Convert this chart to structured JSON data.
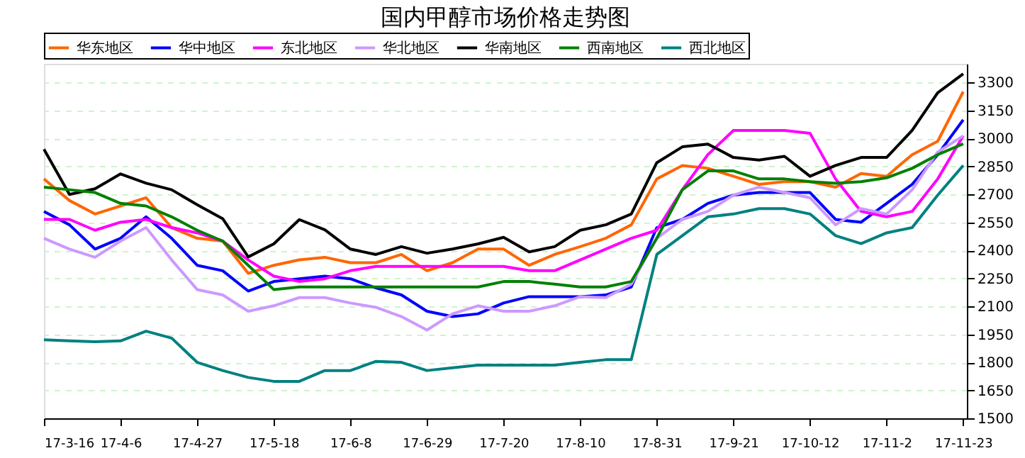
{
  "chart_data": {
    "type": "line",
    "title": "国内甲醇市场价格走势图",
    "x": [
      "--03-16",
      "--03-23",
      "--03-30",
      "--04-06",
      "--04-13",
      "--04-20",
      "--04-27",
      "--05-04",
      "--05-11",
      "--05-18",
      "--05-25",
      "--06-01",
      "--06-08",
      "--06-15",
      "--06-22",
      "--06-29",
      "--07-06",
      "--07-13",
      "--07-20",
      "--07-27",
      "--08-03",
      "--08-10",
      "--08-17",
      "--08-24",
      "--08-31",
      "--09-07",
      "--09-14",
      "--09-21",
      "--09-28",
      "--10-05",
      "--10-12",
      "--10-19",
      "--10-26",
      "--11-02",
      "--11-09",
      "--11-16",
      "--11-23"
    ],
    "series": [
      {
        "name": "华东地区",
        "color": "#ff6600",
        "values": [
          2783,
          2667,
          2595,
          2638,
          2682,
          2522,
          2465,
          2450,
          2277,
          2320,
          2349,
          2363,
          2334,
          2334,
          2378,
          2291,
          2334,
          2407,
          2407,
          2320,
          2378,
          2420,
          2465,
          2537,
          2783,
          2855,
          2840,
          2797,
          2754,
          2768,
          2768,
          2739,
          2812,
          2797,
          2913,
          2985,
          3251
        ]
      },
      {
        "name": "华中地区",
        "color": "#0000ff",
        "values": [
          2609,
          2537,
          2407,
          2465,
          2580,
          2465,
          2320,
          2291,
          2182,
          2233,
          2248,
          2262,
          2248,
          2199,
          2161,
          2074,
          2045,
          2060,
          2118,
          2152,
          2152,
          2152,
          2161,
          2204,
          2522,
          2566,
          2652,
          2696,
          2710,
          2710,
          2710,
          2566,
          2551,
          2652,
          2754,
          2913,
          3100
        ]
      },
      {
        "name": "东北地区",
        "color": "#ff00ff",
        "values": [
          2566,
          2566,
          2508,
          2551,
          2566,
          2522,
          2494,
          2450,
          2349,
          2262,
          2233,
          2248,
          2291,
          2314,
          2314,
          2314,
          2314,
          2314,
          2314,
          2291,
          2291,
          2349,
          2407,
          2465,
          2508,
          2725,
          2913,
          3043,
          3043,
          3043,
          3028,
          2783,
          2609,
          2580,
          2609,
          2783,
          3014
        ]
      },
      {
        "name": "华北地区",
        "color": "#cc99ff",
        "values": [
          2465,
          2407,
          2363,
          2450,
          2522,
          2349,
          2190,
          2161,
          2074,
          2103,
          2147,
          2147,
          2118,
          2095,
          2045,
          1973,
          2060,
          2103,
          2074,
          2074,
          2103,
          2152,
          2147,
          2219,
          2465,
          2566,
          2609,
          2696,
          2739,
          2710,
          2682,
          2537,
          2624,
          2595,
          2725,
          2927,
          3014
        ]
      },
      {
        "name": "华南地区",
        "color": "#000000",
        "values": [
          2942,
          2700,
          2730,
          2810,
          2760,
          2725,
          2645,
          2570,
          2365,
          2435,
          2565,
          2510,
          2407,
          2378,
          2420,
          2385,
          2407,
          2435,
          2470,
          2392,
          2420,
          2508,
          2537,
          2595,
          2870,
          2955,
          2970,
          2898,
          2884,
          2904,
          2797,
          2855,
          2898,
          2898,
          3043,
          3245,
          3346
        ]
      },
      {
        "name": "西南地区",
        "color": "#008000",
        "values": [
          2739,
          2725,
          2710,
          2652,
          2638,
          2580,
          2508,
          2450,
          2320,
          2190,
          2204,
          2204,
          2204,
          2204,
          2204,
          2204,
          2204,
          2204,
          2233,
          2233,
          2219,
          2204,
          2204,
          2233,
          2465,
          2725,
          2826,
          2826,
          2783,
          2783,
          2768,
          2760,
          2768,
          2789,
          2840,
          2913,
          2971
        ]
      },
      {
        "name": "西北地区",
        "color": "#008080",
        "values": [
          1921,
          1915,
          1910,
          1915,
          1967,
          1930,
          1800,
          1756,
          1719,
          1698,
          1698,
          1756,
          1756,
          1805,
          1800,
          1756,
          1771,
          1785,
          1785,
          1785,
          1785,
          1800,
          1814,
          1814,
          2378,
          2479,
          2580,
          2595,
          2624,
          2624,
          2595,
          2479,
          2436,
          2494,
          2522,
          2696,
          2855
        ]
      }
    ],
    "xlim": [
      "--03-16",
      "--11-24"
    ],
    "xticks": [
      {
        "value": "--03-16",
        "label": "17-3-16"
      },
      {
        "value": "--04-06",
        "label": "17-4-6"
      },
      {
        "value": "--04-27",
        "label": "17-4-27"
      },
      {
        "value": "--05-18",
        "label": "17-5-18"
      },
      {
        "value": "--06-08",
        "label": "17-6-8"
      },
      {
        "value": "--06-29",
        "label": "17-6-29"
      },
      {
        "value": "--07-20",
        "label": "17-7-20"
      },
      {
        "value": "--08-10",
        "label": "17-8-10"
      },
      {
        "value": "--08-31",
        "label": "17-8-31"
      },
      {
        "value": "--09-21",
        "label": "17-9-21"
      },
      {
        "value": "--10-12",
        "label": "17-10-12"
      },
      {
        "value": "--11-02",
        "label": "17-11-2"
      },
      {
        "value": "--11-23",
        "label": "17-11-23"
      }
    ],
    "ylim": [
      1500,
      3400
    ],
    "yticks": [
      1500,
      1650,
      1800,
      1950,
      2100,
      2250,
      2400,
      2550,
      2700,
      2850,
      3000,
      3150,
      3300
    ],
    "grid": "y",
    "legend": "top",
    "marker": "none",
    "line_style": "solid"
  }
}
